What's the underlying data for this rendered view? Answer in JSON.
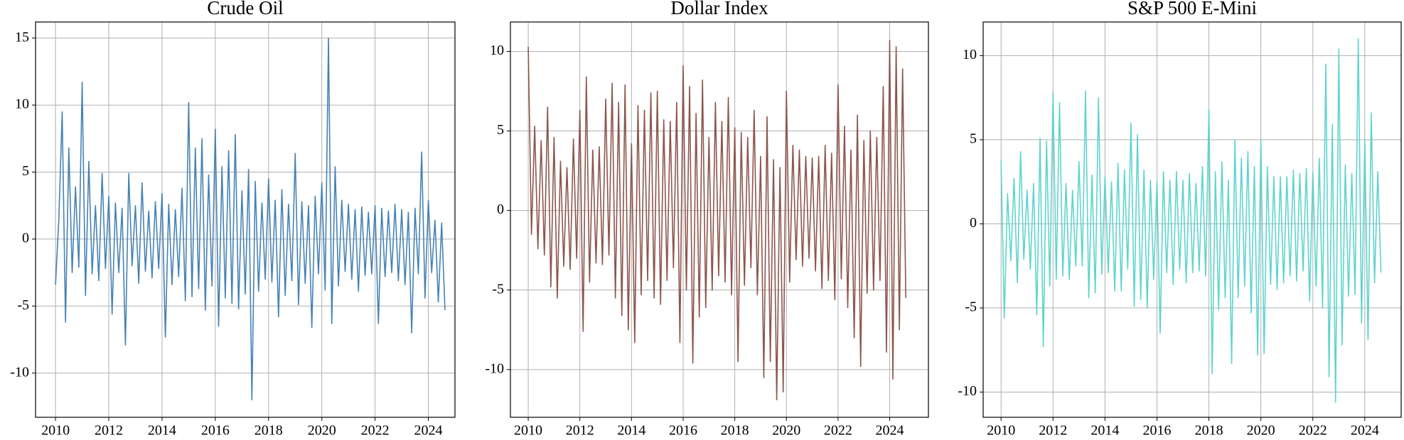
{
  "chart_data": [
    {
      "type": "line",
      "title": "Crude Oil",
      "color": "#4682b4",
      "grid": true,
      "xlim": [
        2009.25,
        2025.0
      ],
      "xticks": [
        2010,
        2012,
        2014,
        2016,
        2018,
        2020,
        2022,
        2024
      ],
      "ylim": [
        -13.3,
        16.2
      ],
      "yticks": [
        -10,
        -5,
        0,
        5,
        10,
        15
      ],
      "x": [
        2010,
        2010.125,
        2010.25,
        2010.375,
        2010.5,
        2010.625,
        2010.75,
        2010.875,
        2011,
        2011.125,
        2011.25,
        2011.375,
        2011.5,
        2011.625,
        2011.75,
        2011.875,
        2012,
        2012.125,
        2012.25,
        2012.375,
        2012.5,
        2012.625,
        2012.75,
        2012.875,
        2013,
        2013.125,
        2013.25,
        2013.375,
        2013.5,
        2013.625,
        2013.75,
        2013.875,
        2014,
        2014.125,
        2014.25,
        2014.375,
        2014.5,
        2014.625,
        2014.75,
        2014.875,
        2015,
        2015.125,
        2015.25,
        2015.375,
        2015.5,
        2015.625,
        2015.75,
        2015.875,
        2016,
        2016.125,
        2016.25,
        2016.375,
        2016.5,
        2016.625,
        2016.75,
        2016.875,
        2017,
        2017.125,
        2017.25,
        2017.375,
        2017.5,
        2017.625,
        2017.75,
        2017.875,
        2018,
        2018.125,
        2018.25,
        2018.375,
        2018.5,
        2018.625,
        2018.75,
        2018.875,
        2019,
        2019.125,
        2019.25,
        2019.375,
        2019.5,
        2019.625,
        2019.75,
        2019.875,
        2020,
        2020.125,
        2020.25,
        2020.375,
        2020.5,
        2020.625,
        2020.75,
        2020.875,
        2021,
        2021.125,
        2021.25,
        2021.375,
        2021.5,
        2021.625,
        2021.75,
        2021.875,
        2022,
        2022.125,
        2022.25,
        2022.375,
        2022.5,
        2022.625,
        2022.75,
        2022.875,
        2023,
        2023.125,
        2023.25,
        2023.375,
        2023.5,
        2023.625,
        2023.75,
        2023.875,
        2024,
        2024.125,
        2024.25,
        2024.375,
        2024.5,
        2024.625
      ],
      "values": [
        -3.4,
        1.5,
        9.5,
        -6.2,
        6.8,
        -2.5,
        3.9,
        -2.1,
        11.7,
        -4.2,
        5.8,
        -2.6,
        2.5,
        -3.1,
        4.9,
        -2.2,
        3.2,
        -5.6,
        2.7,
        -2.5,
        2.3,
        -7.9,
        4.9,
        -2.0,
        2.5,
        -3.3,
        4.2,
        -2.4,
        2.1,
        -2.9,
        2.8,
        -2.2,
        3.4,
        -7.3,
        2.6,
        -3.4,
        2.2,
        -2.8,
        3.8,
        -4.6,
        10.2,
        -4.3,
        6.8,
        -3.7,
        7.5,
        -5.3,
        4.8,
        -3.5,
        8.2,
        -6.5,
        5.4,
        -4.4,
        6.6,
        -4.8,
        7.8,
        -5.2,
        3.6,
        -4.1,
        5.2,
        -12.0,
        4.3,
        -3.9,
        2.7,
        -3.0,
        4.5,
        -3.2,
        2.9,
        -5.8,
        3.7,
        -4.2,
        2.6,
        -3.1,
        6.4,
        -4.9,
        2.8,
        -3.3,
        2.5,
        -6.6,
        3.2,
        -2.6,
        4.2,
        -3.8,
        15.0,
        -6.3,
        5.4,
        -3.5,
        2.9,
        -2.4,
        2.6,
        -3.0,
        2.2,
        -3.9,
        2.4,
        -2.7,
        2.0,
        -2.6,
        2.5,
        -6.3,
        2.3,
        -2.8,
        2.1,
        -2.5,
        2.6,
        -3.1,
        2.2,
        -3.4,
        2.0,
        -7.0,
        2.3,
        -2.6,
        6.5,
        -4.4,
        2.9,
        -2.5,
        1.4,
        -4.7,
        1.2,
        -5.3
      ]
    },
    {
      "type": "line",
      "title": "Dollar Index",
      "color": "#8c564b",
      "grid": true,
      "xlim": [
        2009.31,
        2025.5
      ],
      "xticks": [
        2010,
        2012,
        2014,
        2016,
        2018,
        2020,
        2022,
        2024
      ],
      "ylim": [
        -13.0,
        11.85
      ],
      "yticks": [
        -10,
        -5,
        0,
        5,
        10
      ],
      "x": [
        2010,
        2010.125,
        2010.25,
        2010.375,
        2010.5,
        2010.625,
        2010.75,
        2010.875,
        2011,
        2011.125,
        2011.25,
        2011.375,
        2011.5,
        2011.625,
        2011.75,
        2011.875,
        2012,
        2012.125,
        2012.25,
        2012.375,
        2012.5,
        2012.625,
        2012.75,
        2012.875,
        2013,
        2013.125,
        2013.25,
        2013.375,
        2013.5,
        2013.625,
        2013.75,
        2013.875,
        2014,
        2014.125,
        2014.25,
        2014.375,
        2014.5,
        2014.625,
        2014.75,
        2014.875,
        2015,
        2015.125,
        2015.25,
        2015.375,
        2015.5,
        2015.625,
        2015.75,
        2015.875,
        2016,
        2016.125,
        2016.25,
        2016.375,
        2016.5,
        2016.625,
        2016.75,
        2016.875,
        2017,
        2017.125,
        2017.25,
        2017.375,
        2017.5,
        2017.625,
        2017.75,
        2017.875,
        2018,
        2018.125,
        2018.25,
        2018.375,
        2018.5,
        2018.625,
        2018.75,
        2018.875,
        2019,
        2019.125,
        2019.25,
        2019.375,
        2019.5,
        2019.625,
        2019.75,
        2019.875,
        2020,
        2020.125,
        2020.25,
        2020.375,
        2020.5,
        2020.625,
        2020.75,
        2020.875,
        2021,
        2021.125,
        2021.25,
        2021.375,
        2021.5,
        2021.625,
        2021.75,
        2021.875,
        2022,
        2022.125,
        2022.25,
        2022.375,
        2022.5,
        2022.625,
        2022.75,
        2022.875,
        2023,
        2023.125,
        2023.25,
        2023.375,
        2023.5,
        2023.625,
        2023.75,
        2023.875,
        2024,
        2024.125,
        2024.25,
        2024.375,
        2024.5,
        2024.625
      ],
      "values": [
        10.3,
        -1.5,
        5.3,
        -2.4,
        4.4,
        -2.8,
        6.5,
        -4.8,
        4.6,
        -5.5,
        3.1,
        -3.5,
        2.7,
        -3.7,
        4.5,
        -3.0,
        6.3,
        -7.6,
        8.4,
        -4.5,
        3.8,
        -3.3,
        4.0,
        -3.4,
        7.0,
        -2.8,
        8.0,
        -5.5,
        6.8,
        -6.6,
        7.9,
        -7.5,
        4.2,
        -8.3,
        6.6,
        -5.3,
        6.3,
        -4.4,
        7.4,
        -5.5,
        7.5,
        -5.9,
        5.7,
        -4.4,
        5.6,
        -3.6,
        6.8,
        -8.3,
        9.1,
        -5.0,
        7.8,
        -9.6,
        6.1,
        -6.7,
        8.2,
        -6.1,
        4.6,
        -5.0,
        6.8,
        -4.1,
        5.6,
        -4.5,
        7.1,
        -5.3,
        5.2,
        -9.5,
        4.9,
        -4.7,
        4.6,
        -3.6,
        6.3,
        -5.3,
        3.4,
        -10.5,
        5.9,
        -9.5,
        3.2,
        -11.9,
        2.7,
        -11.4,
        7.5,
        -4.5,
        4.1,
        -3.1,
        3.8,
        -3.5,
        3.4,
        -3.0,
        3.3,
        -3.8,
        3.4,
        -4.9,
        4.1,
        -4.4,
        3.6,
        -5.6,
        7.9,
        -4.3,
        5.3,
        -6.1,
        3.8,
        -8.0,
        6.0,
        -9.8,
        4.4,
        -5.2,
        5.0,
        -5.0,
        4.6,
        -4.4,
        7.8,
        -8.9,
        10.7,
        -10.6,
        10.3,
        -7.5,
        8.9,
        -5.5
      ]
    },
    {
      "type": "line",
      "title": "S&P 500 E-Mini",
      "color": "#5fd3cf",
      "grid": true,
      "xlim": [
        2009.31,
        2025.4
      ],
      "xticks": [
        2010,
        2012,
        2014,
        2016,
        2018,
        2020,
        2022,
        2024
      ],
      "ylim": [
        -11.5,
        12.0
      ],
      "yticks": [
        -10,
        -5,
        0,
        5,
        10
      ],
      "x": [
        2010,
        2010.125,
        2010.25,
        2010.375,
        2010.5,
        2010.625,
        2010.75,
        2010.875,
        2011,
        2011.125,
        2011.25,
        2011.375,
        2011.5,
        2011.625,
        2011.75,
        2011.875,
        2012,
        2012.125,
        2012.25,
        2012.375,
        2012.5,
        2012.625,
        2012.75,
        2012.875,
        2013,
        2013.125,
        2013.25,
        2013.375,
        2013.5,
        2013.625,
        2013.75,
        2013.875,
        2014,
        2014.125,
        2014.25,
        2014.375,
        2014.5,
        2014.625,
        2014.75,
        2014.875,
        2015,
        2015.125,
        2015.25,
        2015.375,
        2015.5,
        2015.625,
        2015.75,
        2015.875,
        2016,
        2016.125,
        2016.25,
        2016.375,
        2016.5,
        2016.625,
        2016.75,
        2016.875,
        2017,
        2017.125,
        2017.25,
        2017.375,
        2017.5,
        2017.625,
        2017.75,
        2017.875,
        2018,
        2018.125,
        2018.25,
        2018.375,
        2018.5,
        2018.625,
        2018.75,
        2018.875,
        2019,
        2019.125,
        2019.25,
        2019.375,
        2019.5,
        2019.625,
        2019.75,
        2019.875,
        2020,
        2020.125,
        2020.25,
        2020.375,
        2020.5,
        2020.625,
        2020.75,
        2020.875,
        2021,
        2021.125,
        2021.25,
        2021.375,
        2021.5,
        2021.625,
        2021.75,
        2021.875,
        2022,
        2022.125,
        2022.25,
        2022.375,
        2022.5,
        2022.625,
        2022.75,
        2022.875,
        2023,
        2023.125,
        2023.25,
        2023.375,
        2023.5,
        2023.625,
        2023.75,
        2023.875,
        2024,
        2024.125,
        2024.25,
        2024.375,
        2024.5,
        2024.625
      ],
      "values": [
        3.8,
        -5.6,
        1.8,
        -2.2,
        2.7,
        -3.5,
        4.3,
        -2.1,
        2.0,
        -2.7,
        2.4,
        -5.4,
        5.1,
        -7.3,
        4.9,
        -3.7,
        7.8,
        -3.3,
        7.2,
        -3.1,
        2.4,
        -3.3,
        2.0,
        -2.5,
        3.7,
        -2.5,
        7.9,
        -4.4,
        2.9,
        -4.1,
        7.5,
        -3.0,
        2.8,
        -2.9,
        2.5,
        -4.0,
        3.6,
        -4.0,
        3.2,
        -2.7,
        6.0,
        -4.9,
        5.3,
        -4.5,
        3.2,
        -5.0,
        2.6,
        -3.3,
        2.5,
        -6.5,
        3.1,
        -2.9,
        2.6,
        -3.6,
        3.1,
        -2.7,
        2.6,
        -3.5,
        3.0,
        -2.9,
        2.4,
        -2.8,
        3.4,
        -3.1,
        6.8,
        -8.9,
        3.1,
        -5.1,
        3.7,
        -4.4,
        2.6,
        -8.3,
        5.0,
        -4.4,
        3.9,
        -3.7,
        4.3,
        -5.3,
        3.4,
        -7.8,
        5.0,
        -7.7,
        3.4,
        -3.6,
        2.8,
        -3.9,
        2.8,
        -3.5,
        2.8,
        -3.1,
        3.2,
        -3.4,
        3.0,
        -2.8,
        3.3,
        -4.6,
        3.1,
        -3.7,
        3.9,
        -5.0,
        9.5,
        -9.1,
        5.9,
        -10.6,
        10.4,
        -7.2,
        3.5,
        -4.3,
        3.0,
        -4.2,
        11.0,
        -5.9,
        5.0,
        -6.9,
        6.6,
        -3.5,
        3.1,
        -2.9
      ]
    }
  ]
}
